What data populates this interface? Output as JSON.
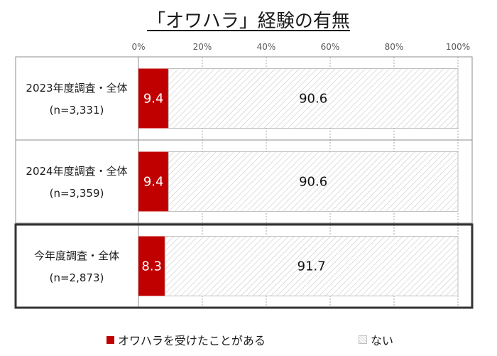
{
  "chart_data": {
    "type": "bar",
    "orientation": "horizontal",
    "stacked": true,
    "title": "「オワハラ」経験の有無",
    "x_ticks": [
      "0%",
      "20%",
      "40%",
      "60%",
      "80%",
      "100%"
    ],
    "xlim": [
      0,
      100
    ],
    "categories": [
      {
        "label": "2023年度調査・全体",
        "n": "(n=3,331)"
      },
      {
        "label": "2024年度調査・全体",
        "n": "(n=3,359)"
      },
      {
        "label": "今年度調査・全体",
        "n": "(n=2,873)"
      }
    ],
    "series": [
      {
        "name": "オワハラを受けたことがある",
        "values": [
          9.4,
          9.4,
          8.3
        ],
        "labels": [
          "9.4",
          "9.4",
          "8.3"
        ],
        "color": "#c00000"
      },
      {
        "name": "ない",
        "values": [
          90.6,
          90.6,
          91.7
        ],
        "labels": [
          "90.6",
          "90.6",
          "91.7"
        ],
        "color": "#d9d9d9",
        "pattern": "diagonal-hatch"
      }
    ],
    "highlighted_category": 2,
    "grid": true,
    "legend_position": "bottom"
  },
  "legend": {
    "yes_label": "オワハラを受けたことがある",
    "no_label": "ない"
  }
}
